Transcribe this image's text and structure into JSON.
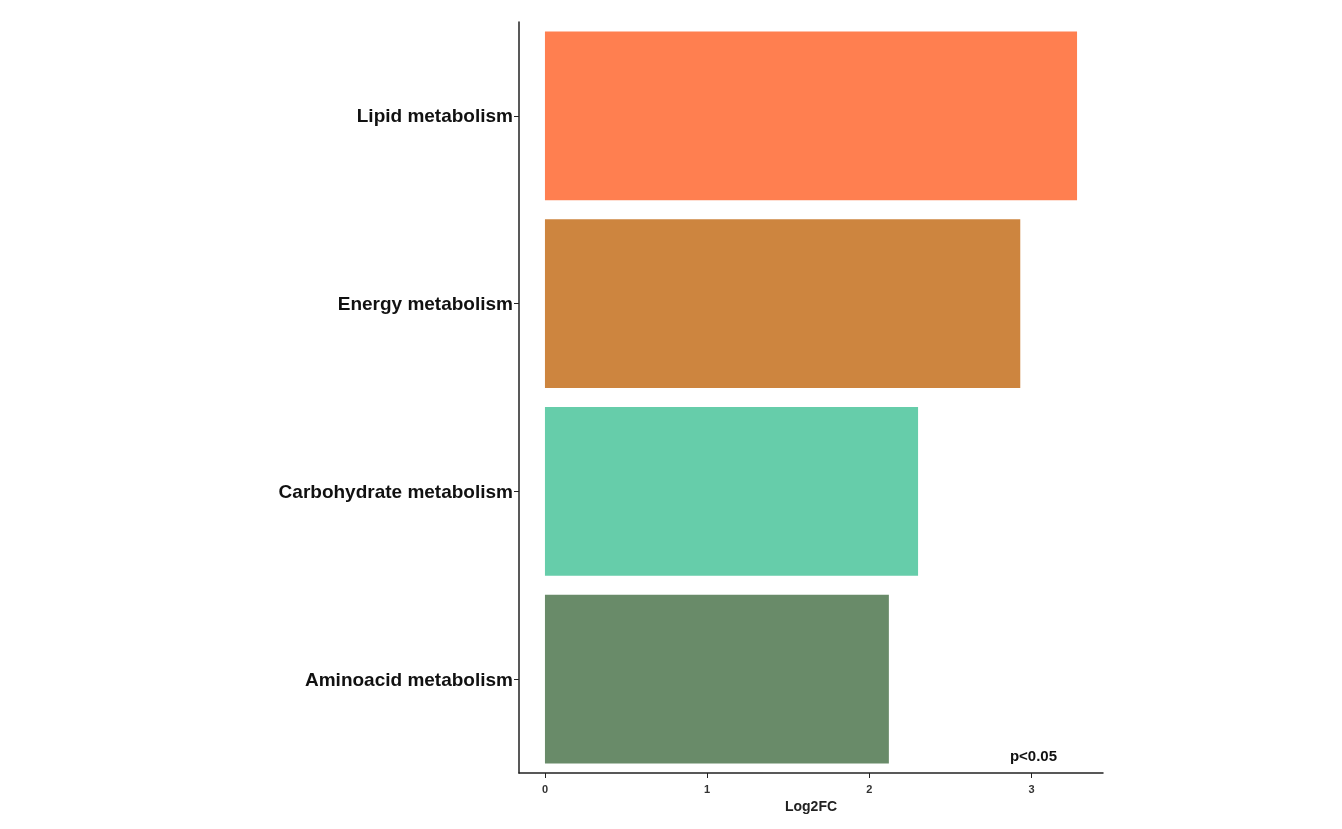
{
  "chart_data": {
    "type": "bar",
    "orientation": "horizontal",
    "xlabel": "Log2FC",
    "categories": [
      "Lipid metabolism",
      "Energy metabolism",
      "Carbohydrate metabolism",
      "Aminoacid metabolism"
    ],
    "values": [
      3.28,
      2.93,
      2.3,
      2.12
    ],
    "colors": [
      "#ff7f50",
      "#cd853f",
      "#66cdaa",
      "#698b69"
    ],
    "xlim": [
      -0.16,
      3.44
    ],
    "xticks": [
      0,
      1,
      2,
      3
    ],
    "grid": false,
    "annotations": [
      "p<0.05"
    ]
  }
}
